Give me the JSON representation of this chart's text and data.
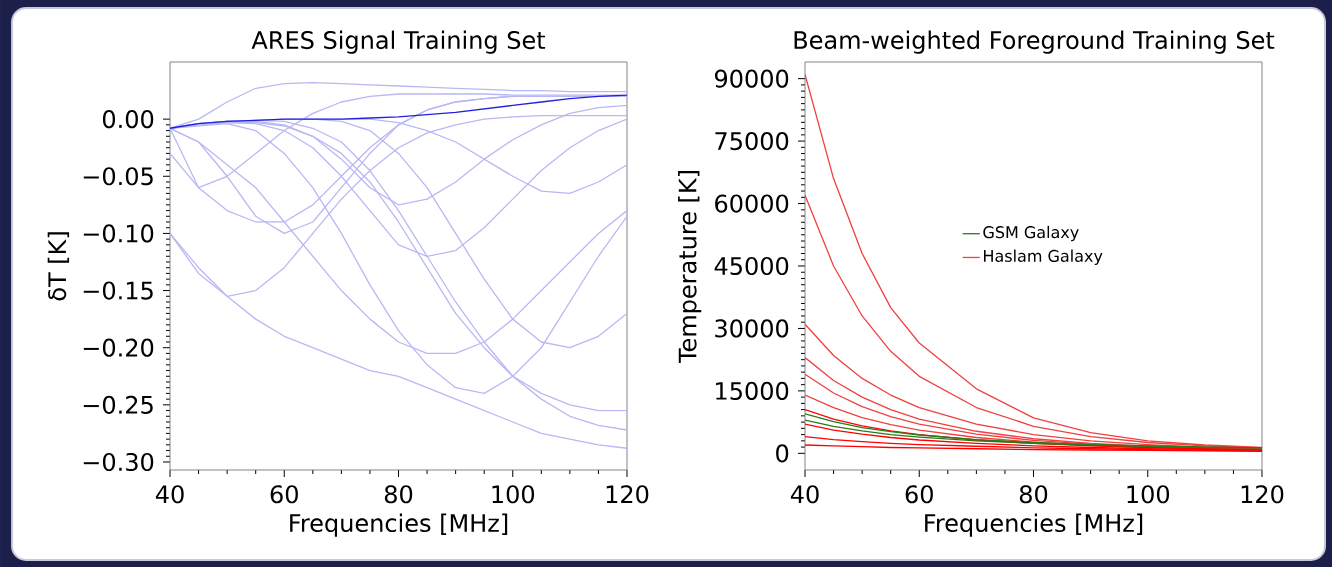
{
  "chart_data": [
    {
      "type": "line",
      "title": "ARES Signal Training Set",
      "xlabel": "Frequencies [MHz]",
      "ylabel": "δT [K]",
      "x": [
        40,
        45,
        50,
        55,
        60,
        65,
        70,
        75,
        80,
        85,
        90,
        95,
        100,
        105,
        110,
        115,
        120
      ],
      "xlim": [
        40,
        120
      ],
      "ylim": [
        -0.307,
        0.05
      ],
      "xticks": [
        40,
        60,
        80,
        100,
        120
      ],
      "yticks": [
        {
          "value": -0.3,
          "label": "−0.30"
        },
        {
          "value": -0.25,
          "label": "−0.25"
        },
        {
          "value": -0.2,
          "label": "−0.20"
        },
        {
          "value": -0.15,
          "label": "−0.15"
        },
        {
          "value": -0.1,
          "label": "−0.10"
        },
        {
          "value": -0.05,
          "label": "−0.05"
        },
        {
          "value": 0,
          "label": "0.00"
        }
      ],
      "series": [
        {
          "color": "#b8b8f4",
          "values": [
            -0.008,
            0.0,
            0.015,
            0.027,
            0.031,
            0.032,
            0.031,
            0.03,
            0.029,
            0.028,
            0.027,
            0.026,
            0.025,
            0.025,
            0.024,
            0.024,
            0.024
          ]
        },
        {
          "color": "#b8b8f4",
          "values": [
            -0.008,
            -0.06,
            -0.05,
            -0.03,
            -0.01,
            0.005,
            0.015,
            0.02,
            0.022,
            0.022,
            0.022,
            0.022,
            0.021,
            0.021,
            0.021,
            0.021,
            0.021
          ]
        },
        {
          "color": "#b8b8f4",
          "values": [
            -0.008,
            -0.02,
            -0.05,
            -0.085,
            -0.1,
            -0.09,
            -0.06,
            -0.03,
            -0.005,
            0.008,
            0.015,
            0.018,
            0.02,
            0.02,
            0.02,
            0.02,
            0.02
          ]
        },
        {
          "color": "#b8b8f4",
          "values": [
            -0.1,
            -0.135,
            -0.155,
            -0.15,
            -0.13,
            -0.1,
            -0.07,
            -0.045,
            -0.025,
            -0.012,
            -0.005,
            0.0,
            0.002,
            0.003,
            0.003,
            0.003,
            0.003
          ]
        },
        {
          "color": "#b8b8f4",
          "values": [
            -0.008,
            -0.006,
            -0.004,
            -0.01,
            -0.03,
            -0.06,
            -0.1,
            -0.145,
            -0.185,
            -0.215,
            -0.235,
            -0.24,
            -0.225,
            -0.2,
            -0.16,
            -0.12,
            -0.085
          ]
        },
        {
          "color": "#b8b8f4",
          "values": [
            -0.1,
            -0.13,
            -0.155,
            -0.175,
            -0.19,
            -0.2,
            -0.21,
            -0.22,
            -0.225,
            -0.235,
            -0.245,
            -0.255,
            -0.265,
            -0.275,
            -0.28,
            -0.285,
            -0.288
          ]
        },
        {
          "color": "#b8b8f4",
          "values": [
            -0.008,
            -0.004,
            -0.002,
            -0.001,
            -0.002,
            -0.008,
            -0.02,
            -0.045,
            -0.08,
            -0.12,
            -0.16,
            -0.195,
            -0.225,
            -0.245,
            -0.26,
            -0.268,
            -0.272
          ]
        },
        {
          "color": "#b8b8f4",
          "values": [
            -0.008,
            -0.004,
            -0.002,
            -0.001,
            0.0,
            0.0,
            -0.002,
            -0.01,
            -0.03,
            -0.06,
            -0.1,
            -0.14,
            -0.175,
            -0.195,
            -0.2,
            -0.19,
            -0.17
          ]
        },
        {
          "color": "#b8b8f4",
          "values": [
            -0.008,
            -0.004,
            -0.002,
            -0.002,
            -0.005,
            -0.015,
            -0.035,
            -0.06,
            -0.075,
            -0.07,
            -0.055,
            -0.035,
            -0.018,
            -0.005,
            0.005,
            0.01,
            0.012
          ]
        },
        {
          "color": "#b8b8f4",
          "values": [
            -0.008,
            -0.004,
            -0.003,
            -0.004,
            -0.01,
            -0.025,
            -0.05,
            -0.08,
            -0.11,
            -0.12,
            -0.115,
            -0.095,
            -0.07,
            -0.045,
            -0.025,
            -0.01,
            0.0
          ]
        },
        {
          "color": "#b8b8f4",
          "values": [
            -0.008,
            -0.004,
            -0.002,
            -0.001,
            0.0,
            0.0,
            0.0,
            0.0,
            -0.003,
            -0.01,
            -0.02,
            -0.035,
            -0.05,
            -0.063,
            -0.065,
            -0.055,
            -0.04
          ]
        },
        {
          "color": "#b8b8f4",
          "values": [
            -0.008,
            -0.02,
            -0.04,
            -0.06,
            -0.09,
            -0.12,
            -0.15,
            -0.175,
            -0.195,
            -0.205,
            -0.205,
            -0.195,
            -0.175,
            -0.15,
            -0.125,
            -0.1,
            -0.08
          ]
        },
        {
          "color": "#b8b8f4",
          "values": [
            -0.03,
            -0.06,
            -0.08,
            -0.09,
            -0.09,
            -0.075,
            -0.05,
            -0.025,
            -0.005,
            0.008,
            0.015,
            0.018,
            0.02,
            0.02,
            0.02,
            0.02,
            0.02
          ]
        },
        {
          "color": "#b8b8f4",
          "values": [
            -0.008,
            -0.005,
            -0.003,
            -0.003,
            -0.006,
            -0.015,
            -0.03,
            -0.055,
            -0.09,
            -0.13,
            -0.17,
            -0.2,
            -0.225,
            -0.24,
            -0.25,
            -0.255,
            -0.255
          ]
        },
        {
          "color": "#2020e0",
          "values": [
            -0.008,
            -0.004,
            -0.002,
            -0.001,
            0.0,
            0.0,
            0.0,
            0.001,
            0.002,
            0.004,
            0.006,
            0.009,
            0.012,
            0.015,
            0.018,
            0.02,
            0.021
          ]
        }
      ]
    },
    {
      "type": "line",
      "title": "Beam-weighted Foreground Training Set",
      "xlabel": "Frequencies [MHz]",
      "ylabel": "Temperature [K]",
      "x": [
        40,
        45,
        50,
        55,
        60,
        70,
        80,
        90,
        100,
        110,
        120
      ],
      "xlim": [
        40,
        120
      ],
      "ylim": [
        -4000,
        94000
      ],
      "xticks": [
        40,
        60,
        80,
        100,
        120
      ],
      "yticks": [
        0,
        15000,
        30000,
        45000,
        60000,
        75000,
        90000
      ],
      "legend": "center",
      "series": [
        {
          "name": "Haslam Galaxy",
          "color": "#f04040",
          "values": [
            91000,
            66000,
            48000,
            35000,
            26500,
            15500,
            8500,
            5000,
            3000,
            2000,
            1400
          ]
        },
        {
          "color": "#f04040",
          "values": [
            62000,
            45000,
            33000,
            24500,
            18500,
            11000,
            6500,
            4000,
            2600,
            1800,
            1300
          ]
        },
        {
          "color": "#f04040",
          "values": [
            31000,
            23500,
            18000,
            14000,
            11000,
            7000,
            4500,
            3000,
            2100,
            1500,
            1100
          ]
        },
        {
          "color": "#f04040",
          "values": [
            23000,
            17500,
            13500,
            10500,
            8200,
            5300,
            3500,
            2400,
            1700,
            1200,
            900
          ]
        },
        {
          "color": "#f04040",
          "values": [
            19000,
            14500,
            11200,
            8800,
            7000,
            4600,
            3100,
            2200,
            1600,
            1100,
            900
          ]
        },
        {
          "color": "#f04040",
          "values": [
            14000,
            11000,
            8600,
            6900,
            5600,
            3800,
            2700,
            1900,
            1400,
            1000,
            800
          ]
        },
        {
          "color": "#ff0000",
          "values": [
            10500,
            8200,
            6600,
            5400,
            4500,
            3200,
            2400,
            1800,
            1400,
            1100,
            900
          ]
        },
        {
          "color": "#ff0000",
          "values": [
            7000,
            5600,
            4600,
            3800,
            3200,
            2400,
            1800,
            1400,
            1100,
            900,
            800
          ]
        },
        {
          "color": "#ff0000",
          "values": [
            4000,
            3300,
            2800,
            2400,
            2100,
            1700,
            1300,
            1100,
            900,
            700,
            600
          ]
        },
        {
          "color": "#ff0000",
          "values": [
            2000,
            1800,
            1600,
            1400,
            1300,
            1100,
            900,
            800,
            700,
            600,
            500
          ]
        },
        {
          "name": "GSM Galaxy",
          "color": "#2a7a1a",
          "values": [
            9500,
            7600,
            6200,
            5200,
            4400,
            3300,
            2600,
            2100,
            1800,
            1500,
            1300
          ]
        },
        {
          "color": "#2a7a1a",
          "values": [
            8000,
            6500,
            5400,
            4500,
            3900,
            3000,
            2400,
            2000,
            1700,
            1400,
            1300
          ]
        }
      ]
    }
  ]
}
